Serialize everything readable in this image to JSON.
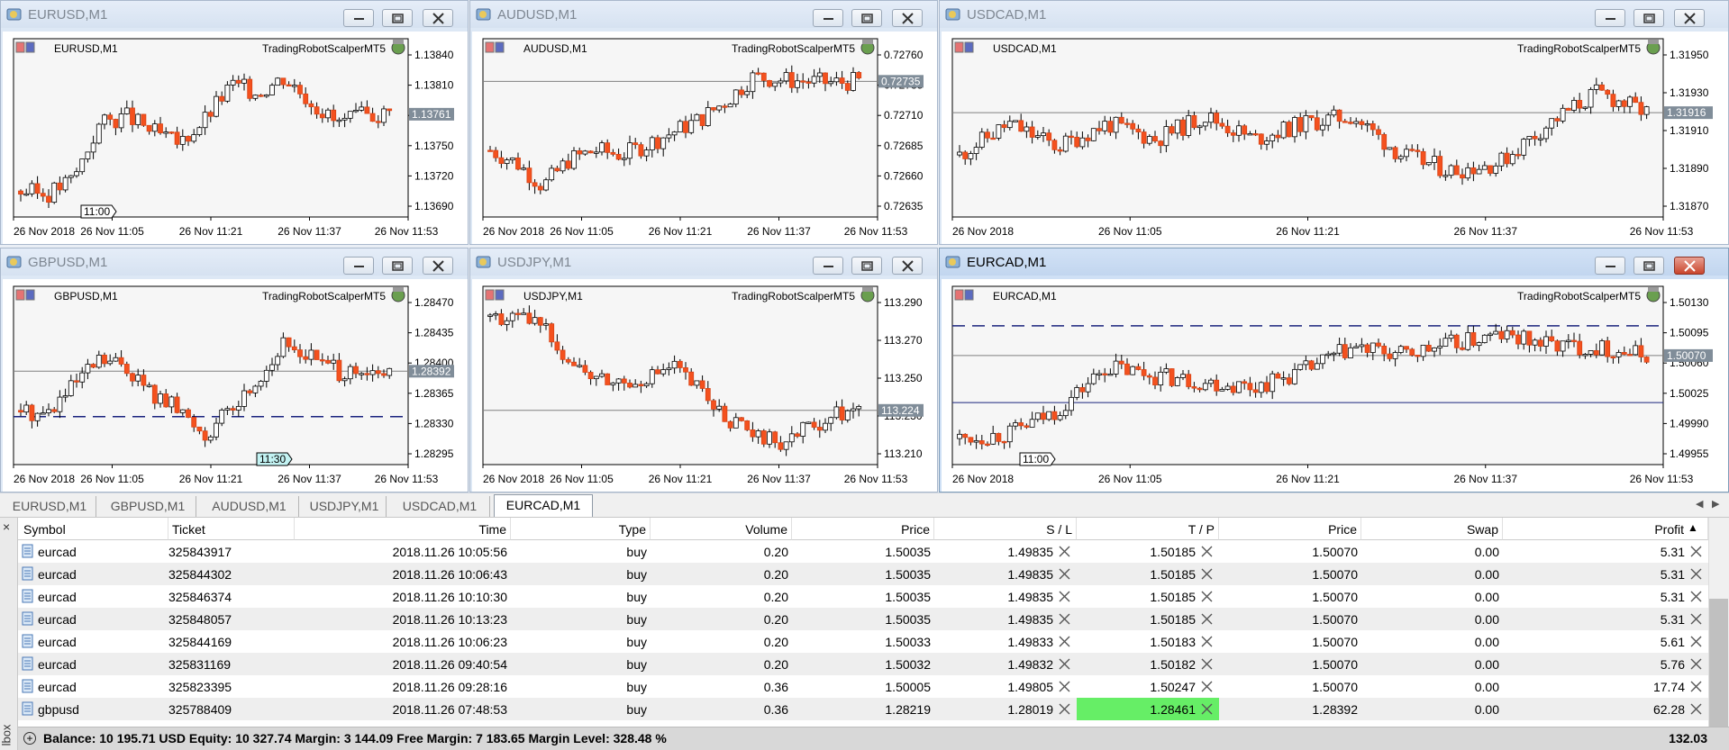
{
  "charts": [
    {
      "title": "EURUSD,M1",
      "label": "EURUSD,M1",
      "robot": "TradingRobotScalperMT5",
      "prices": [
        "1.13840",
        "1.13810",
        "1.13780",
        "1.13750",
        "1.13720",
        "1.13690"
      ],
      "bid": "1.13761",
      "bid_frac": 0.61,
      "times": [
        "26 Nov 2018",
        "26 Nov 11:05",
        "26 Nov 11:21",
        "26 Nov 11:37",
        "26 Nov 11:53"
      ],
      "marker": "11:00",
      "active": false,
      "dashed": [],
      "solid": [],
      "seed": 3,
      "path": [
        0.12,
        0.1,
        0.2,
        0.55,
        0.6,
        0.5,
        0.42,
        0.58,
        0.8,
        0.75,
        0.85,
        0.7,
        0.55,
        0.6,
        0.62
      ]
    },
    {
      "title": "AUDUSD,M1",
      "label": "AUDUSD,M1",
      "robot": "TradingRobotScalperMT5",
      "prices": [
        "0.72760",
        "0.72735",
        "0.72710",
        "0.72685",
        "0.72660",
        "0.72635"
      ],
      "bid": "0.72735",
      "bid_frac": 0.82,
      "times": [
        "26 Nov 2018",
        "26 Nov 11:05",
        "26 Nov 11:21",
        "26 Nov 11:37",
        "26 Nov 11:53"
      ],
      "marker": "",
      "active": false,
      "dashed": [],
      "solid": [
        0.82
      ],
      "seed": 7,
      "path": [
        0.38,
        0.3,
        0.15,
        0.32,
        0.38,
        0.35,
        0.42,
        0.5,
        0.58,
        0.7,
        0.85,
        0.83,
        0.82,
        0.81,
        0.82
      ]
    },
    {
      "title": "USDCAD,M1",
      "label": "USDCAD,M1",
      "robot": "TradingRobotScalperMT5",
      "prices": [
        "1.31950",
        "1.31930",
        "1.31910",
        "1.31890",
        "1.31870"
      ],
      "bid": "1.31916",
      "bid_frac": 0.62,
      "times": [
        "26 Nov 2018",
        "26 Nov 11:05",
        "26 Nov 11:21",
        "26 Nov 11:37",
        "26 Nov 11:53"
      ],
      "marker": "",
      "active": false,
      "dashed": [],
      "solid": [
        0.62
      ],
      "seed": 11,
      "path": [
        0.35,
        0.55,
        0.4,
        0.55,
        0.45,
        0.6,
        0.45,
        0.55,
        0.6,
        0.35,
        0.25,
        0.3,
        0.55,
        0.75,
        0.62
      ]
    },
    {
      "title": "GBPUSD,M1",
      "label": "GBPUSD,M1",
      "robot": "TradingRobotScalperMT5",
      "prices": [
        "1.28470",
        "1.28435",
        "1.28400",
        "1.28365",
        "1.28330",
        "1.28295"
      ],
      "bid": "1.28392",
      "bid_frac": 0.55,
      "times": [
        "26 Nov 2018",
        "26 Nov 11:05",
        "26 Nov 11:21",
        "26 Nov 11:37",
        "26 Nov 11:53"
      ],
      "marker": "11:30",
      "active": false,
      "dashed": [
        0.26
      ],
      "solid": [
        0.55
      ],
      "seed": 5,
      "path": [
        0.3,
        0.28,
        0.45,
        0.62,
        0.58,
        0.4,
        0.3,
        0.15,
        0.3,
        0.5,
        0.72,
        0.65,
        0.55,
        0.5,
        0.55
      ]
    },
    {
      "title": "USDJPY,M1",
      "label": "USDJPY,M1",
      "robot": "TradingRobotScalperMT5",
      "prices": [
        "113.290",
        "113.270",
        "113.250",
        "113.230",
        "113.210"
      ],
      "bid": "113.224",
      "bid_frac": 0.3,
      "times": [
        "26 Nov 2018",
        "26 Nov 11:05",
        "26 Nov 11:21",
        "26 Nov 11:37",
        "26 Nov 11:53"
      ],
      "marker": "",
      "active": false,
      "dashed": [],
      "solid": [
        0.3
      ],
      "seed": 9,
      "path": [
        0.9,
        0.88,
        0.85,
        0.62,
        0.5,
        0.48,
        0.52,
        0.58,
        0.42,
        0.25,
        0.12,
        0.1,
        0.18,
        0.28,
        0.3
      ]
    },
    {
      "title": "EURCAD,M1",
      "label": "EURCAD,M1",
      "robot": "TradingRobotScalperMT5",
      "prices": [
        "1.50130",
        "1.50095",
        "1.50060",
        "1.50025",
        "1.49990",
        "1.49955"
      ],
      "bid": "1.50070",
      "bid_frac": 0.65,
      "times": [
        "26 Nov 2018",
        "26 Nov 11:05",
        "26 Nov 11:21",
        "26 Nov 11:37",
        "26 Nov 11:53"
      ],
      "marker": "11:00",
      "active": true,
      "dashed": [
        0.84
      ],
      "solid": [
        0.35,
        0.65
      ],
      "seed": 13,
      "path": [
        0.12,
        0.15,
        0.3,
        0.58,
        0.52,
        0.48,
        0.45,
        0.55,
        0.7,
        0.65,
        0.72,
        0.78,
        0.72,
        0.7,
        0.65
      ]
    }
  ],
  "tabs": [
    {
      "label": "EURUSD,M1",
      "active": false
    },
    {
      "label": "GBPUSD,M1",
      "active": false
    },
    {
      "label": "AUDUSD,M1",
      "active": false
    },
    {
      "label": "USDJPY,M1",
      "active": false
    },
    {
      "label": "USDCAD,M1",
      "active": false
    },
    {
      "label": "EURCAD,M1",
      "active": true
    }
  ],
  "columns": [
    "Symbol",
    "Ticket",
    "Time",
    "Type",
    "Volume",
    "Price",
    "S / L",
    "T / P",
    "Price",
    "Swap",
    "Profit"
  ],
  "rows": [
    {
      "symbol": "eurcad",
      "ticket": "325843917",
      "time": "2018.11.26 10:05:56",
      "type": "buy",
      "volume": "0.20",
      "price": "1.50035",
      "sl": "1.49835",
      "tp": "1.50185",
      "cur": "1.50070",
      "swap": "0.00",
      "profit": "5.31",
      "tp_hit": false
    },
    {
      "symbol": "eurcad",
      "ticket": "325844302",
      "time": "2018.11.26 10:06:43",
      "type": "buy",
      "volume": "0.20",
      "price": "1.50035",
      "sl": "1.49835",
      "tp": "1.50185",
      "cur": "1.50070",
      "swap": "0.00",
      "profit": "5.31",
      "tp_hit": false
    },
    {
      "symbol": "eurcad",
      "ticket": "325846374",
      "time": "2018.11.26 10:10:30",
      "type": "buy",
      "volume": "0.20",
      "price": "1.50035",
      "sl": "1.49835",
      "tp": "1.50185",
      "cur": "1.50070",
      "swap": "0.00",
      "profit": "5.31",
      "tp_hit": false
    },
    {
      "symbol": "eurcad",
      "ticket": "325848057",
      "time": "2018.11.26 10:13:23",
      "type": "buy",
      "volume": "0.20",
      "price": "1.50035",
      "sl": "1.49835",
      "tp": "1.50185",
      "cur": "1.50070",
      "swap": "0.00",
      "profit": "5.31",
      "tp_hit": false
    },
    {
      "symbol": "eurcad",
      "ticket": "325844169",
      "time": "2018.11.26 10:06:23",
      "type": "buy",
      "volume": "0.20",
      "price": "1.50033",
      "sl": "1.49833",
      "tp": "1.50183",
      "cur": "1.50070",
      "swap": "0.00",
      "profit": "5.61",
      "tp_hit": false
    },
    {
      "symbol": "eurcad",
      "ticket": "325831169",
      "time": "2018.11.26 09:40:54",
      "type": "buy",
      "volume": "0.20",
      "price": "1.50032",
      "sl": "1.49832",
      "tp": "1.50182",
      "cur": "1.50070",
      "swap": "0.00",
      "profit": "5.76",
      "tp_hit": false
    },
    {
      "symbol": "eurcad",
      "ticket": "325823395",
      "time": "2018.11.26 09:28:16",
      "type": "buy",
      "volume": "0.36",
      "price": "1.50005",
      "sl": "1.49805",
      "tp": "1.50247",
      "cur": "1.50070",
      "swap": "0.00",
      "profit": "17.74",
      "tp_hit": false
    },
    {
      "symbol": "gbpusd",
      "ticket": "325788409",
      "time": "2018.11.26 07:48:53",
      "type": "buy",
      "volume": "0.36",
      "price": "1.28219",
      "sl": "1.28019",
      "tp": "1.28461",
      "cur": "1.28392",
      "swap": "0.00",
      "profit": "62.28",
      "tp_hit": true
    }
  ],
  "summary": {
    "text": "Balance: 10 195.71 USD  Equity: 10 327.74  Margin: 3 144.09  Free Margin: 7 183.65  Margin Level: 328.48 %",
    "profit": "132.03"
  },
  "side_label": "lbox",
  "colors": {
    "bear": "#f4511e",
    "bull": "#ffffff",
    "tp_hit": "#66ee66",
    "line": "#1a237e"
  }
}
